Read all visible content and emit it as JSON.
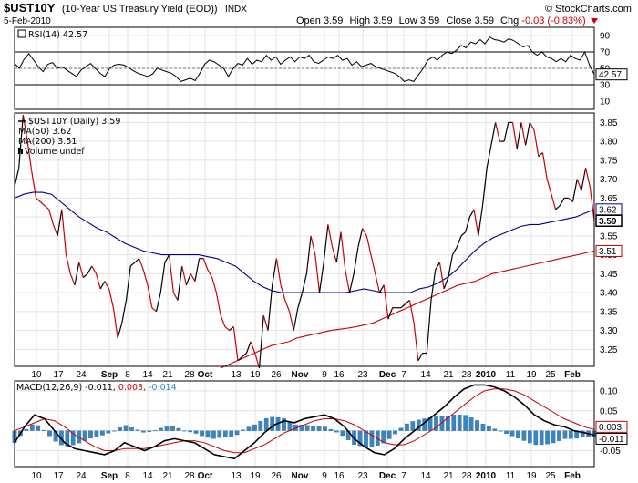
{
  "header": {
    "symbol": "$UST10Y",
    "description": "(10-Year US Treasury Yield (EOD))",
    "exchange": "INDX",
    "date": "5-Feb-2010",
    "open_label": "Open",
    "open": "3.59",
    "high_label": "High",
    "high": "3.59",
    "low_label": "Low",
    "low": "3.59",
    "close_label": "Close",
    "close": "3.59",
    "chg_label": "Chg",
    "chg": "-0.03 (-0.83%)",
    "watermark": "© StockCharts.com"
  },
  "chart_data": [
    {
      "type": "line",
      "panel": "RSI",
      "legend": "RSI(14) 42.57",
      "current_label": "42.57",
      "yticks": [
        10,
        30,
        50,
        70,
        90
      ],
      "ylim": [
        0,
        100
      ],
      "reference_lines": [
        30,
        70
      ],
      "values": [
        56,
        50,
        61,
        68,
        60,
        52,
        46,
        55,
        57,
        50,
        52,
        48,
        44,
        40,
        48,
        52,
        56,
        50,
        44,
        40,
        50,
        54,
        55,
        54,
        51,
        47,
        44,
        42,
        40,
        43,
        50,
        48,
        46,
        44,
        40,
        34,
        36,
        38,
        35,
        44,
        55,
        60,
        58,
        54,
        50,
        40,
        50,
        56,
        54,
        62,
        55,
        60,
        58,
        66,
        60,
        64,
        55,
        60,
        64,
        58,
        64,
        62,
        66,
        58,
        56,
        60,
        64,
        62,
        66,
        60,
        62,
        54,
        58,
        52,
        54,
        56,
        52,
        50,
        48,
        46,
        44,
        40,
        34,
        36,
        34,
        42,
        50,
        60,
        64,
        60,
        66,
        70,
        68,
        72,
        78,
        75,
        82,
        80,
        85,
        80,
        88,
        85,
        84,
        82,
        86,
        84,
        80,
        76,
        78,
        70,
        66,
        70,
        64,
        62,
        58,
        62,
        58,
        66,
        62,
        60,
        70,
        54,
        42.57
      ],
      "colors": {
        "line": "#000000",
        "ref": "#000000"
      }
    },
    {
      "type": "line",
      "panel": "Price",
      "legend": [
        {
          "name": "$UST10Y (Daily) 3.59",
          "color": "#000000"
        },
        {
          "name": "MA(50) 3.62",
          "color": "#00008b"
        },
        {
          "name": "MA(200) 3.51",
          "color": "#cc0000"
        },
        {
          "name": "Volume undef",
          "color": "#000000"
        }
      ],
      "yticks": [
        3.25,
        3.3,
        3.35,
        3.4,
        3.45,
        3.5,
        3.55,
        3.6,
        3.65,
        3.7,
        3.75,
        3.8,
        3.85
      ],
      "ylim": [
        3.205,
        3.875
      ],
      "price_labels": [
        {
          "text": "3.62",
          "value": 3.62,
          "style": "outline"
        },
        {
          "text": "3.59",
          "value": 3.59,
          "style": "bold"
        },
        {
          "text": "3.51",
          "value": 3.51,
          "style": "red"
        }
      ],
      "series": [
        {
          "name": "$UST10Y (Daily)",
          "values": [
            3.68,
            3.73,
            3.87,
            3.8,
            3.72,
            3.65,
            3.64,
            3.63,
            3.62,
            3.58,
            3.55,
            3.62,
            3.5,
            3.45,
            3.42,
            3.48,
            3.44,
            3.45,
            3.47,
            3.45,
            3.41,
            3.43,
            3.41,
            3.36,
            3.28,
            3.32,
            3.38,
            3.47,
            3.48,
            3.49,
            3.46,
            3.42,
            3.36,
            3.35,
            3.4,
            3.48,
            3.5,
            3.4,
            3.38,
            3.47,
            3.42,
            3.45,
            3.43,
            3.49,
            3.49,
            3.46,
            3.44,
            3.4,
            3.34,
            3.31,
            3.3,
            3.31,
            3.22,
            3.23,
            3.24,
            3.27,
            3.24,
            3.2,
            3.34,
            3.3,
            3.42,
            3.49,
            3.42,
            3.38,
            3.35,
            3.3,
            3.36,
            3.4,
            3.45,
            3.55,
            3.5,
            3.4,
            3.48,
            3.58,
            3.52,
            3.48,
            3.56,
            3.46,
            3.4,
            3.45,
            3.52,
            3.57,
            3.55,
            3.5,
            3.45,
            3.4,
            3.42,
            3.33,
            3.36,
            3.36,
            3.36,
            3.37,
            3.38,
            3.32,
            3.22,
            3.24,
            3.24,
            3.38,
            3.46,
            3.48,
            3.41,
            3.44,
            3.5,
            3.52,
            3.55,
            3.56,
            3.6,
            3.62,
            3.55,
            3.63,
            3.73,
            3.79,
            3.85,
            3.8,
            3.8,
            3.85,
            3.85,
            3.78,
            3.85,
            3.79,
            3.85,
            3.83,
            3.76,
            3.77,
            3.7,
            3.66,
            3.62,
            3.63,
            3.65,
            3.65,
            3.64,
            3.7,
            3.67,
            3.73,
            3.68,
            3.59
          ],
          "color": "#000000"
        },
        {
          "name": "MA(50)",
          "values": [
            3.65,
            3.66,
            3.665,
            3.665,
            3.66,
            3.64,
            3.62,
            3.6,
            3.585,
            3.57,
            3.56,
            3.545,
            3.53,
            3.52,
            3.51,
            3.505,
            3.5,
            3.5,
            3.5,
            3.5,
            3.5,
            3.495,
            3.49,
            3.48,
            3.47,
            3.45,
            3.43,
            3.415,
            3.405,
            3.4,
            3.4,
            3.4,
            3.4,
            3.4,
            3.4,
            3.4,
            3.4,
            3.405,
            3.41,
            3.405,
            3.4,
            3.4,
            3.4,
            3.4,
            3.41,
            3.415,
            3.425,
            3.44,
            3.46,
            3.485,
            3.51,
            3.53,
            3.545,
            3.555,
            3.565,
            3.575,
            3.58,
            3.58,
            3.585,
            3.59,
            3.595,
            3.6,
            3.61,
            3.62
          ],
          "color": "#00008b"
        },
        {
          "name": "MA(200)",
          "values": [
            3.2,
            3.21,
            3.22,
            3.23,
            3.24,
            3.25,
            3.26,
            3.265,
            3.27,
            3.28,
            3.285,
            3.29,
            3.295,
            3.3,
            3.303,
            3.306,
            3.31,
            3.315,
            3.32,
            3.33,
            3.34,
            3.35,
            3.36,
            3.37,
            3.38,
            3.39,
            3.4,
            3.41,
            3.42,
            3.425,
            3.43,
            3.44,
            3.45,
            3.455,
            3.46,
            3.465,
            3.47,
            3.475,
            3.48,
            3.485,
            3.49,
            3.495,
            3.5,
            3.505,
            3.51
          ],
          "color": "#cc0000"
        }
      ]
    },
    {
      "type": "line",
      "panel": "MACD",
      "legend": [
        {
          "name": "MACD(12,26,9)",
          "value": "-0.011",
          "color": "#000000"
        },
        {
          "name": "",
          "value": "0.003",
          "color": "#cc0000"
        },
        {
          "name": "",
          "value": "-0.014",
          "color": "#3a85c0"
        }
      ],
      "yticks": [
        0.1,
        0.05,
        0.0,
        -0.05
      ],
      "ylim": [
        -0.09,
        0.125
      ],
      "value_labels": [
        {
          "text": "0.003",
          "value": 0.003
        },
        {
          "text": "-0.011",
          "value": -0.011
        }
      ],
      "series": [
        {
          "name": "MACD",
          "values": [
            -0.03,
            0.01,
            0.04,
            0.03,
            0.0,
            -0.03,
            -0.045,
            -0.05,
            -0.055,
            -0.06,
            -0.05,
            -0.03,
            -0.04,
            -0.05,
            -0.04,
            -0.025,
            -0.02,
            -0.025,
            -0.03,
            -0.045,
            -0.06,
            -0.065,
            -0.07,
            -0.05,
            -0.03,
            -0.005,
            0.015,
            0.025,
            0.02,
            0.03,
            0.035,
            0.04,
            0.03,
            0.01,
            -0.02,
            -0.04,
            -0.055,
            -0.06,
            -0.045,
            -0.02,
            0.0,
            0.02,
            0.04,
            0.06,
            0.085,
            0.105,
            0.115,
            0.115,
            0.11,
            0.1,
            0.085,
            0.065,
            0.04,
            0.025,
            0.015,
            0.01,
            0.0,
            -0.005,
            -0.011
          ],
          "color": "#000000"
        },
        {
          "name": "Signal",
          "values": [
            0.0,
            0.01,
            0.02,
            0.03,
            0.025,
            0.01,
            -0.01,
            -0.025,
            -0.04,
            -0.05,
            -0.05,
            -0.045,
            -0.045,
            -0.045,
            -0.04,
            -0.035,
            -0.03,
            -0.025,
            -0.025,
            -0.03,
            -0.04,
            -0.05,
            -0.055,
            -0.055,
            -0.045,
            -0.035,
            -0.02,
            -0.005,
            0.005,
            0.015,
            0.025,
            0.03,
            0.03,
            0.025,
            0.015,
            0.0,
            -0.015,
            -0.03,
            -0.035,
            -0.035,
            -0.025,
            -0.01,
            0.005,
            0.025,
            0.045,
            0.065,
            0.085,
            0.1,
            0.105,
            0.105,
            0.1,
            0.09,
            0.075,
            0.06,
            0.045,
            0.03,
            0.02,
            0.01,
            0.003
          ],
          "color": "#cc0000"
        },
        {
          "name": "Histogram",
          "color": "#3a85c0"
        }
      ]
    }
  ],
  "x_axis": {
    "ticks": [
      {
        "label": "10",
        "bold": false
      },
      {
        "label": "17",
        "bold": false
      },
      {
        "label": "24",
        "bold": false
      },
      {
        "label": "Sep",
        "bold": true
      },
      {
        "label": "8",
        "bold": false
      },
      {
        "label": "14",
        "bold": false
      },
      {
        "label": "21",
        "bold": false
      },
      {
        "label": "28",
        "bold": false
      },
      {
        "label": "Oct",
        "bold": true
      },
      {
        "label": "13",
        "bold": false
      },
      {
        "label": "19",
        "bold": false
      },
      {
        "label": "26",
        "bold": false
      },
      {
        "label": "Nov",
        "bold": true
      },
      {
        "label": "9",
        "bold": false
      },
      {
        "label": "16",
        "bold": false
      },
      {
        "label": "23",
        "bold": false
      },
      {
        "label": "Dec",
        "bold": true
      },
      {
        "label": "7",
        "bold": false
      },
      {
        "label": "14",
        "bold": false
      },
      {
        "label": "21",
        "bold": false
      },
      {
        "label": "28",
        "bold": false
      },
      {
        "label": "2010",
        "bold": true
      },
      {
        "label": "11",
        "bold": false
      },
      {
        "label": "19",
        "bold": false
      },
      {
        "label": "25",
        "bold": false
      },
      {
        "label": "Feb",
        "bold": true
      }
    ]
  }
}
